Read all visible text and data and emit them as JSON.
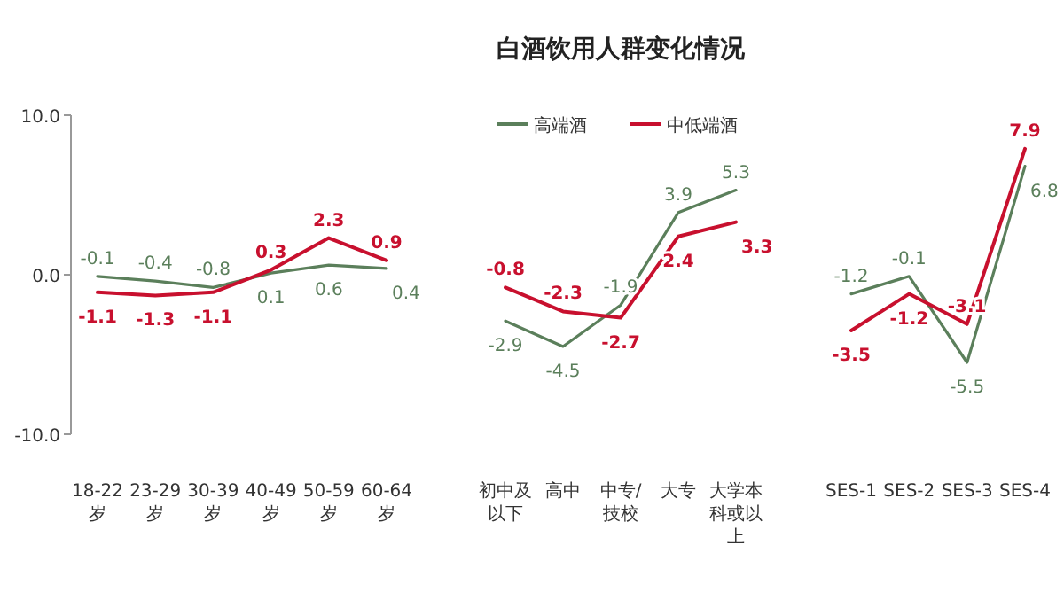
{
  "chart_data": [
    {
      "type": "line",
      "categories": [
        "18-22岁",
        "23-29岁",
        "30-39岁",
        "40-49岁",
        "50-59岁",
        "60-64岁"
      ],
      "ylim": [
        -10,
        10
      ],
      "yticks": [
        {
          "value": 10,
          "label": "10.0"
        },
        {
          "value": 0,
          "label": "0.0"
        },
        {
          "value": -10,
          "label": "-10.0"
        }
      ],
      "data_labels": true,
      "marker": "none",
      "series": [
        {
          "color": "#5b7f5b",
          "values": [
            -0.1,
            -0.4,
            -0.8,
            0.1,
            0.6,
            0.4
          ]
        },
        {
          "color": "#c8102e",
          "values": [
            -1.1,
            -1.3,
            -1.1,
            0.3,
            2.3,
            0.9
          ]
        }
      ]
    },
    {
      "type": "line",
      "title": "白酒饮用人群变化情况",
      "categories": [
        "初中及以下",
        "高中",
        "中专/技校",
        "大专",
        "大学本科或以上"
      ],
      "ylim": [
        -10,
        10
      ],
      "tick_labels": "x",
      "data_labels": true,
      "marker": "none",
      "legend": "top",
      "series": [
        {
          "name": "高端酒",
          "color": "#5b7f5b",
          "values": [
            -2.9,
            -4.5,
            -1.9,
            3.9,
            5.3
          ]
        },
        {
          "name": "中低端酒",
          "color": "#c8102e",
          "values": [
            -0.8,
            -2.3,
            -2.7,
            2.4,
            3.3
          ]
        }
      ]
    },
    {
      "type": "line",
      "categories": [
        "SES-1",
        "SES-2",
        "SES-3",
        "SES-4"
      ],
      "ylim": [
        -10,
        10
      ],
      "tick_labels": "x",
      "data_labels": true,
      "marker": "none",
      "series": [
        {
          "color": "#5b7f5b",
          "values": [
            -1.2,
            -0.1,
            -5.5,
            6.8
          ]
        },
        {
          "color": "#c8102e",
          "values": [
            -3.5,
            -1.2,
            -3.1,
            7.9
          ]
        }
      ]
    }
  ]
}
